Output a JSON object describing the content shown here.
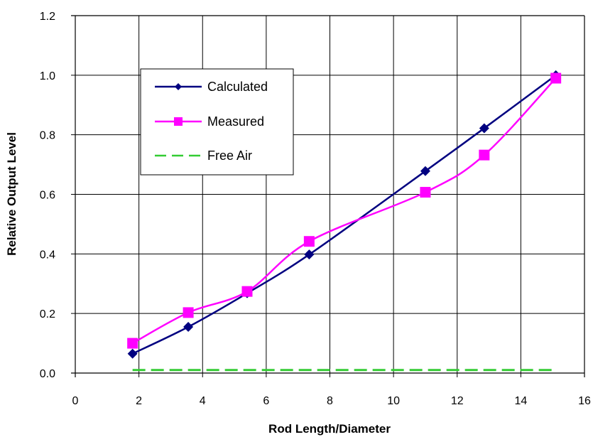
{
  "chart_data": {
    "type": "line",
    "title": "",
    "xlabel": "Rod Length/Diameter",
    "ylabel": "Relative Output Level",
    "xlim": [
      0,
      16
    ],
    "ylim": [
      0.0,
      1.2
    ],
    "xticks": [
      0,
      2,
      4,
      6,
      8,
      10,
      12,
      14,
      16
    ],
    "yticks": [
      0.0,
      0.2,
      0.4,
      0.6,
      0.8,
      1.0,
      1.2
    ],
    "xtick_labels": [
      "0",
      "2",
      "4",
      "6",
      "8",
      "10",
      "12",
      "14",
      "16"
    ],
    "ytick_labels": [
      "0.0",
      "0.2",
      "0.4",
      "0.6",
      "0.8",
      "1.0",
      "1.2"
    ],
    "grid": true,
    "legend_position": "top-left",
    "series": [
      {
        "name": "Calculated",
        "color": "#000080",
        "marker": "diamond",
        "style": "solid",
        "points": [
          [
            1.8,
            0.065
          ],
          [
            3.55,
            0.155
          ],
          [
            5.4,
            0.268
          ],
          [
            7.35,
            0.398
          ],
          [
            11.0,
            0.678
          ],
          [
            12.85,
            0.822
          ],
          [
            15.1,
            1.0
          ]
        ]
      },
      {
        "name": "Measured",
        "color": "#ff00ff",
        "marker": "square",
        "style": "solid",
        "points": [
          [
            1.8,
            0.1
          ],
          [
            3.55,
            0.203
          ],
          [
            5.4,
            0.274
          ],
          [
            7.35,
            0.442
          ],
          [
            11.0,
            0.607
          ],
          [
            12.85,
            0.732
          ],
          [
            15.1,
            0.99
          ]
        ]
      },
      {
        "name": "Free Air",
        "color": "#33cc33",
        "marker": "none",
        "style": "dashed",
        "points": [
          [
            1.8,
            0.01
          ],
          [
            15.1,
            0.01
          ]
        ]
      }
    ]
  }
}
